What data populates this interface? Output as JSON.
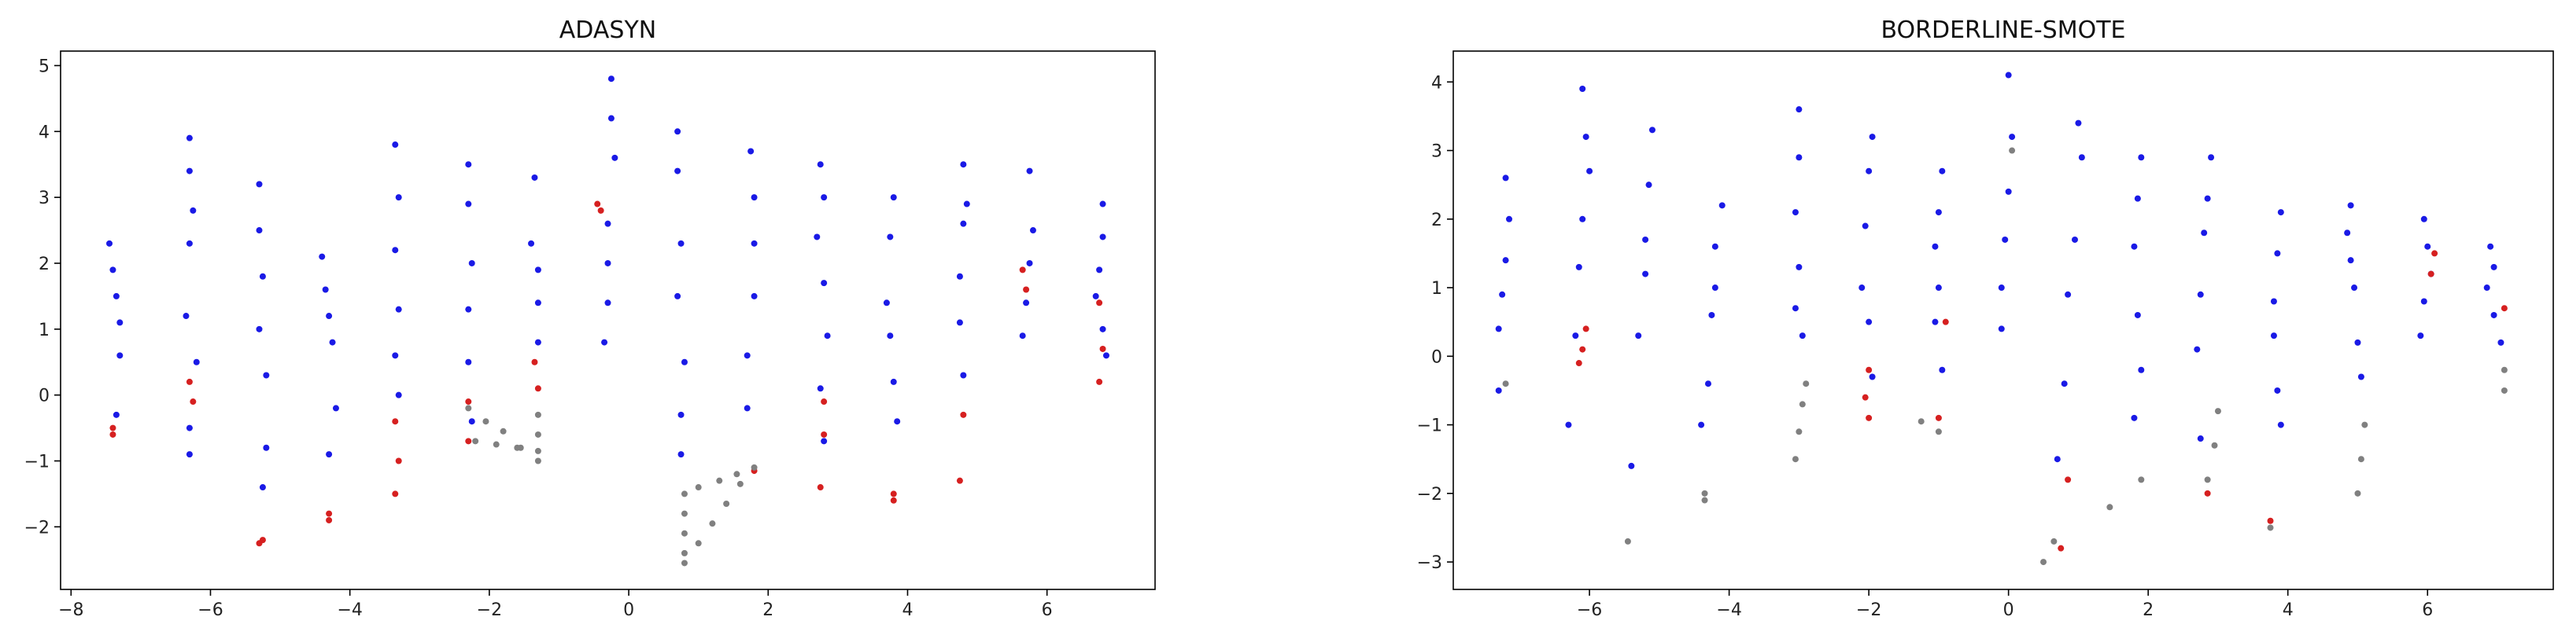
{
  "chart_data": [
    {
      "type": "scatter",
      "title": "ADASYN",
      "xlim": [
        -8.15,
        7.55
      ],
      "ylim": [
        -2.95,
        5.22
      ],
      "xticks": [
        {
          "value": -8,
          "label": "−8"
        },
        {
          "value": -6,
          "label": "−6"
        },
        {
          "value": -4,
          "label": "−4"
        },
        {
          "value": -2,
          "label": "−2"
        },
        0,
        2,
        4,
        6
      ],
      "yticks": [
        {
          "value": -2,
          "label": "−2"
        },
        {
          "value": -1,
          "label": "−1"
        },
        0,
        1,
        2,
        3,
        4,
        5
      ],
      "series": [
        {
          "color": "#1a1ae6",
          "x": [
            -7.45,
            -7.4,
            -7.35,
            -7.3,
            -7.3,
            -7.35,
            -6.3,
            -6.3,
            -6.25,
            -6.3,
            -6.35,
            -6.2,
            -6.3,
            -6.3,
            -5.3,
            -5.3,
            -5.25,
            -5.3,
            -5.2,
            -5.2,
            -5.25,
            -4.4,
            -4.35,
            -4.3,
            -4.25,
            -4.2,
            -4.3,
            -3.35,
            -3.3,
            -3.35,
            -3.3,
            -3.35,
            -3.3,
            -2.3,
            -2.3,
            -2.25,
            -2.3,
            -2.3,
            -2.25,
            -1.35,
            -1.4,
            -1.3,
            -1.3,
            -1.3,
            -0.25,
            -0.25,
            -0.2,
            -0.3,
            -0.3,
            -0.3,
            -0.35,
            0.7,
            0.7,
            0.75,
            0.7,
            0.8,
            0.75,
            0.75,
            1.75,
            1.8,
            1.8,
            1.8,
            1.7,
            1.7,
            2.75,
            2.8,
            2.7,
            2.8,
            2.85,
            2.75,
            2.8,
            3.8,
            3.75,
            3.7,
            3.75,
            3.8,
            3.85,
            4.8,
            4.85,
            4.8,
            4.75,
            4.75,
            4.8,
            5.75,
            5.8,
            5.75,
            5.7,
            5.65,
            6.8,
            6.8,
            6.75,
            6.7,
            6.8,
            6.85
          ],
          "y": [
            2.3,
            1.9,
            1.5,
            1.1,
            0.6,
            -0.3,
            3.9,
            3.4,
            2.8,
            2.3,
            1.2,
            0.5,
            -0.5,
            -0.9,
            3.2,
            2.5,
            1.8,
            1.0,
            0.3,
            -0.8,
            -1.4,
            2.1,
            1.6,
            1.2,
            0.8,
            -0.2,
            -0.9,
            3.8,
            3.0,
            2.2,
            1.3,
            0.6,
            0.0,
            3.5,
            2.9,
            2.0,
            1.3,
            0.5,
            -0.4,
            3.3,
            2.3,
            1.9,
            1.4,
            0.8,
            4.8,
            4.2,
            3.6,
            2.6,
            2.0,
            1.4,
            0.8,
            4.0,
            3.4,
            2.3,
            1.5,
            0.5,
            -0.3,
            -0.9,
            3.7,
            3.0,
            2.3,
            1.5,
            0.6,
            -0.2,
            3.5,
            3.0,
            2.4,
            1.7,
            0.9,
            0.1,
            -0.7,
            3.0,
            2.4,
            1.4,
            0.9,
            0.2,
            -0.4,
            3.5,
            2.9,
            2.6,
            1.8,
            1.1,
            0.3,
            3.4,
            2.5,
            2.0,
            1.4,
            0.9,
            2.9,
            2.4,
            1.9,
            1.5,
            1.0,
            0.6
          ]
        },
        {
          "color": "#d62020",
          "x": [
            -7.4,
            -7.4,
            -6.3,
            -6.25,
            -5.25,
            -5.3,
            -4.3,
            -4.3,
            -3.35,
            -3.3,
            -3.35,
            -2.3,
            -2.3,
            -1.35,
            -1.3,
            -0.45,
            -0.4,
            1.8,
            2.8,
            2.8,
            2.75,
            3.8,
            3.8,
            4.8,
            4.75,
            5.65,
            5.7,
            6.75,
            6.8,
            6.75
          ],
          "y": [
            -0.5,
            -0.6,
            0.2,
            -0.1,
            -2.2,
            -2.25,
            -1.8,
            -1.9,
            -0.4,
            -1.0,
            -1.5,
            -0.1,
            -0.7,
            0.5,
            0.1,
            2.9,
            2.8,
            -1.15,
            -0.1,
            -0.6,
            -1.4,
            -1.5,
            -1.6,
            -0.3,
            -1.3,
            1.9,
            1.6,
            1.4,
            0.7,
            0.2
          ]
        },
        {
          "color": "#808080",
          "x": [
            -2.3,
            -2.05,
            -1.8,
            -1.55,
            -1.3,
            -2.2,
            -1.9,
            -1.6,
            -1.3,
            -1.3,
            -1.3,
            0.8,
            0.8,
            0.8,
            0.8,
            0.8,
            1.0,
            1.2,
            1.4,
            1.6,
            1.8,
            1.0,
            1.3,
            1.55
          ],
          "y": [
            -0.2,
            -0.4,
            -0.55,
            -0.8,
            -1.0,
            -0.7,
            -0.75,
            -0.8,
            -0.85,
            -0.6,
            -0.3,
            -1.5,
            -1.8,
            -2.1,
            -2.4,
            -2.55,
            -2.25,
            -1.95,
            -1.65,
            -1.35,
            -1.1,
            -1.4,
            -1.3,
            -1.2
          ]
        }
      ]
    },
    {
      "type": "scatter",
      "title": "BORDERLINE-SMOTE",
      "xlim": [
        -7.95,
        7.8
      ],
      "ylim": [
        -3.4,
        4.45
      ],
      "xticks": [
        {
          "value": -6,
          "label": "−6"
        },
        {
          "value": -4,
          "label": "−4"
        },
        {
          "value": -2,
          "label": "−2"
        },
        0,
        2,
        4,
        6
      ],
      "yticks": [
        {
          "value": -3,
          "label": "−3"
        },
        {
          "value": -2,
          "label": "−2"
        },
        {
          "value": -1,
          "label": "−1"
        },
        0,
        1,
        2,
        3,
        4
      ],
      "series": [
        {
          "color": "#1a1ae6",
          "x": [
            -7.2,
            -7.15,
            -7.2,
            -7.25,
            -7.3,
            -7.3,
            -6.1,
            -6.05,
            -6.0,
            -6.1,
            -6.15,
            -6.2,
            -6.3,
            -5.1,
            -5.15,
            -5.2,
            -5.2,
            -5.3,
            -5.4,
            -4.1,
            -4.2,
            -4.2,
            -4.25,
            -4.3,
            -4.4,
            -3.0,
            -3.0,
            -3.05,
            -3.0,
            -3.05,
            -2.95,
            -1.95,
            -2.0,
            -2.05,
            -2.1,
            -2.0,
            -1.95,
            -0.95,
            -1.0,
            -1.05,
            -1.0,
            -1.05,
            -0.95,
            0.0,
            0.05,
            0.0,
            -0.05,
            -0.1,
            -0.1,
            1.0,
            1.05,
            0.95,
            0.85,
            0.8,
            0.7,
            1.9,
            1.85,
            1.8,
            1.85,
            1.9,
            1.8,
            2.9,
            2.85,
            2.8,
            2.75,
            2.7,
            2.75,
            3.9,
            3.85,
            3.8,
            3.8,
            3.85,
            3.9,
            4.9,
            4.85,
            4.9,
            4.95,
            5.0,
            5.05,
            5.95,
            6.0,
            6.05,
            5.95,
            5.9,
            6.9,
            6.95,
            6.85,
            6.95,
            7.05
          ],
          "y": [
            2.6,
            2.0,
            1.4,
            0.9,
            0.4,
            -0.5,
            3.9,
            3.2,
            2.7,
            2.0,
            1.3,
            0.3,
            -1.0,
            3.3,
            2.5,
            1.7,
            1.2,
            0.3,
            -1.6,
            2.2,
            1.6,
            1.0,
            0.6,
            -0.4,
            -1.0,
            3.6,
            2.9,
            2.1,
            1.3,
            0.7,
            0.3,
            3.2,
            2.7,
            1.9,
            1.0,
            0.5,
            -0.3,
            2.7,
            2.1,
            1.6,
            1.0,
            0.5,
            -0.2,
            4.1,
            3.2,
            2.4,
            1.7,
            1.0,
            0.4,
            3.4,
            2.9,
            1.7,
            0.9,
            -0.4,
            -1.5,
            2.9,
            2.3,
            1.6,
            0.6,
            -0.2,
            -0.9,
            2.9,
            2.3,
            1.8,
            0.9,
            0.1,
            -1.2,
            2.1,
            1.5,
            0.8,
            0.3,
            -0.5,
            -1.0,
            2.2,
            1.8,
            1.4,
            1.0,
            0.2,
            -0.3,
            2.0,
            1.6,
            1.2,
            0.8,
            0.3,
            1.6,
            1.3,
            1.0,
            0.6,
            0.2
          ]
        },
        {
          "color": "#d62020",
          "x": [
            -6.05,
            -6.1,
            -6.15,
            -2.0,
            -2.05,
            -2.0,
            -1.0,
            -0.9,
            6.1,
            6.05,
            7.1,
            2.85,
            0.85,
            0.75,
            3.75
          ],
          "y": [
            0.4,
            0.1,
            -0.1,
            -0.2,
            -0.6,
            -0.9,
            -0.9,
            0.5,
            1.5,
            1.2,
            0.7,
            -2.0,
            -1.8,
            -2.8,
            -2.4
          ]
        },
        {
          "color": "#808080",
          "x": [
            -7.2,
            -5.45,
            -4.35,
            -4.35,
            -3.05,
            -3.0,
            -2.95,
            -2.9,
            -1.25,
            -1.0,
            0.05,
            0.5,
            0.65,
            1.45,
            1.9,
            2.85,
            2.95,
            3.0,
            3.75,
            5.0,
            5.05,
            5.1,
            7.1,
            7.1
          ],
          "y": [
            -0.4,
            -2.7,
            -2.0,
            -2.1,
            -1.5,
            -1.1,
            -0.7,
            -0.4,
            -0.95,
            -1.1,
            3.0,
            -3.0,
            -2.7,
            -2.2,
            -1.8,
            -1.8,
            -1.3,
            -0.8,
            -2.5,
            -2.0,
            -1.5,
            -1.0,
            -0.2,
            -0.5
          ]
        }
      ]
    }
  ]
}
